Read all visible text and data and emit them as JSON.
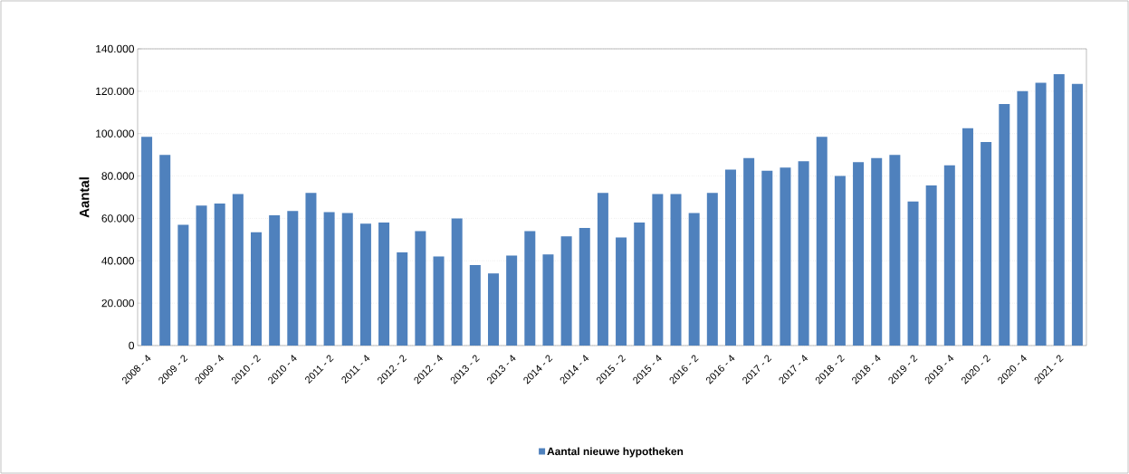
{
  "chart_data": {
    "type": "bar",
    "ylabel": "Aantal",
    "categories": [
      "2008 - 4",
      null,
      "2009 - 2",
      null,
      "2009 - 4",
      null,
      "2010 - 2",
      null,
      "2010 - 4",
      null,
      "2011 - 2",
      null,
      "2011 - 4",
      null,
      "2012 - 2",
      null,
      "2012 - 4",
      null,
      "2013 - 2",
      null,
      "2013 - 4",
      null,
      "2014 - 2",
      null,
      "2014 - 4",
      null,
      "2015 - 2",
      null,
      "2015 - 4",
      null,
      "2016 - 2",
      null,
      "2016 - 4",
      null,
      "2017 - 2",
      null,
      "2017 - 4",
      null,
      "2018 - 2",
      null,
      "2018 - 4",
      null,
      "2019 - 2",
      null,
      "2019 - 4",
      null,
      "2020 - 2",
      null,
      "2020 - 4",
      null,
      "2021 - 2",
      null
    ],
    "series": [
      {
        "name": "Aantal nieuwe hypotheken",
        "color": "#4f81bd",
        "values": [
          98500,
          90000,
          57000,
          66000,
          67000,
          71500,
          53500,
          61500,
          63500,
          72000,
          63000,
          62500,
          57500,
          58000,
          44000,
          54000,
          42000,
          60000,
          38000,
          34000,
          42500,
          54000,
          43000,
          51500,
          55500,
          72000,
          51000,
          58000,
          71500,
          71500,
          62500,
          72000,
          83000,
          88500,
          82500,
          84000,
          87000,
          98500,
          80000,
          86500,
          88500,
          90000,
          68000,
          75500,
          85000,
          102500,
          96000,
          114000,
          120000,
          124000,
          128000,
          123500
        ]
      }
    ],
    "ylim": [
      0,
      140000
    ],
    "yticks": [
      0,
      {
        "value": 20000,
        "label": "20.000"
      },
      {
        "value": 40000,
        "label": "40.000"
      },
      {
        "value": 60000,
        "label": "60.000"
      },
      {
        "value": 80000,
        "label": "80.000"
      },
      {
        "value": 100000,
        "label": "100.000"
      },
      {
        "value": 120000,
        "label": "120.000"
      },
      {
        "value": 140000,
        "label": "140.000"
      }
    ],
    "grid": "y",
    "legend": "bottom"
  }
}
